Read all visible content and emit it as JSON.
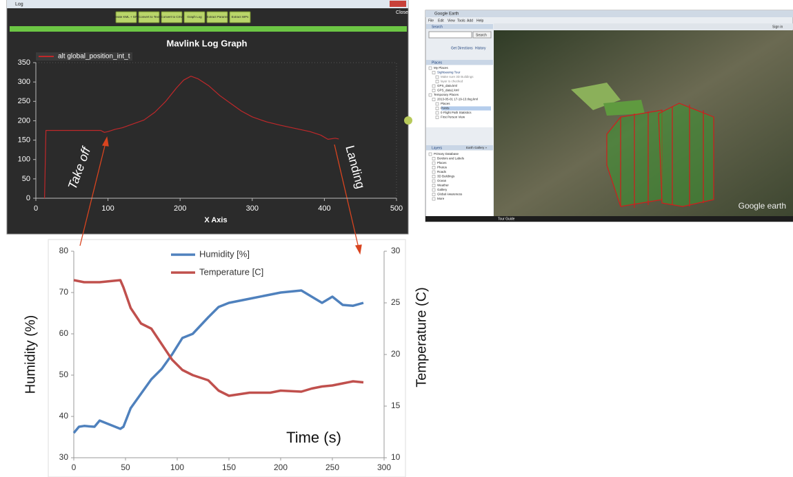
{
  "log_window": {
    "title": "Log",
    "close": "Close",
    "buttons": [
      "Create KML + GPS",
      "Convert to Text",
      "Convert to CSV",
      "Graph Log",
      "Extract Params",
      "Extract WPs"
    ]
  },
  "google_earth": {
    "title": "Google Earth",
    "menu": [
      "File",
      "Edit",
      "View",
      "Tools",
      "Add",
      "Help"
    ],
    "search_header": "Search",
    "search_button": "Search",
    "get_directions": "Get Directions",
    "history": "History",
    "places_header": "Places",
    "places": [
      "My Places",
      "Sightseeing Tour",
      "Make sure 3D Buildings",
      "layer is checked",
      "GPS_data.kml",
      "GPS_data1.kml",
      "Temporary Places",
      "2013-05-01 17-19-13.tlog.kml",
      "Places",
      "Points",
      "0 Flight Path Statistics",
      "First Person View"
    ],
    "layers_header": "Layers",
    "earth_gallery": "Earth Gallery »",
    "layers": [
      "Primary Database",
      "Borders and Labels",
      "Places",
      "Photos",
      "Roads",
      "3D Buildings",
      "Ocean",
      "Weather",
      "Gallery",
      "Global Awareness",
      "More"
    ],
    "tour_guide": "Tour Guide",
    "sign_in": "Sign in",
    "logo": "Google earth"
  },
  "chart_data": [
    {
      "type": "line",
      "title": "Mavlink Log Graph",
      "x_label": "X Axis",
      "annotations": [
        "Take off",
        "Landing"
      ],
      "x": [
        12,
        14,
        40,
        60,
        80,
        90,
        95,
        100,
        110,
        120,
        135,
        150,
        165,
        180,
        195,
        205,
        215,
        225,
        240,
        255,
        270,
        285,
        300,
        320,
        340,
        360,
        380,
        395,
        405,
        415,
        420
      ],
      "series": [
        {
          "name": "alt global_position_int_t",
          "color": "#c0282a",
          "values": [
            0,
            175,
            175,
            175,
            175,
            175,
            170,
            172,
            178,
            182,
            192,
            202,
            222,
            250,
            285,
            305,
            315,
            308,
            290,
            265,
            245,
            225,
            210,
            197,
            188,
            180,
            172,
            163,
            152,
            155,
            153
          ]
        }
      ],
      "xlim": [
        0,
        500
      ],
      "xticks": [
        0,
        100,
        200,
        300,
        400,
        500
      ],
      "ylim": [
        0,
        350
      ],
      "yticks": [
        0,
        50,
        100,
        150,
        200,
        250,
        300,
        350
      ],
      "grid": false
    },
    {
      "type": "line",
      "y_label": "Humidity (%)",
      "y2_label": "Temperature (C)",
      "annotations": [
        "Time (s)"
      ],
      "x": [
        0,
        5,
        10,
        20,
        25,
        35,
        45,
        48,
        55,
        65,
        75,
        85,
        95,
        105,
        115,
        130,
        140,
        150,
        170,
        190,
        200,
        220,
        230,
        240,
        250,
        260,
        270,
        280
      ],
      "series": [
        {
          "name": "Humidity [%]",
          "color": "#4f81bd",
          "values": [
            36,
            37.5,
            37.7,
            37.5,
            39,
            38,
            37,
            37.5,
            42,
            45.5,
            49,
            51.5,
            55,
            59,
            60,
            64,
            66.5,
            67.5,
            68.5,
            69.5,
            70,
            70.5,
            69,
            67.5,
            69,
            67,
            66.8,
            67.5
          ]
        },
        {
          "name": "Temperature [C]",
          "color": "#c0504d",
          "axis": "y2",
          "values": [
            27.2,
            27.1,
            27,
            27,
            27,
            27.1,
            27.2,
            26.5,
            24.5,
            23,
            22.5,
            21,
            19.5,
            18.5,
            18,
            17.5,
            16.5,
            16,
            16.3,
            16.3,
            16.5,
            16.4,
            16.7,
            16.9,
            17,
            17.2,
            17.4,
            17.3
          ]
        }
      ],
      "xlim": [
        0,
        300
      ],
      "xticks": [
        0,
        50,
        100,
        150,
        200,
        250,
        300
      ],
      "ylim": [
        30,
        80
      ],
      "yticks": [
        30,
        40,
        50,
        60,
        70,
        80
      ],
      "y2lim": [
        10,
        30
      ],
      "y2ticks": [
        10,
        15,
        20,
        25,
        30
      ],
      "grid": false
    }
  ]
}
